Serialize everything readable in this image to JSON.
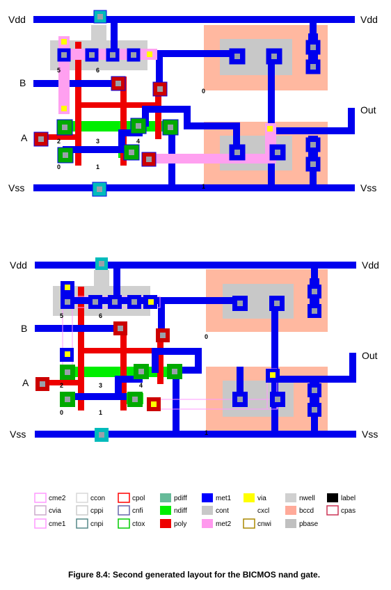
{
  "layouts": [
    {
      "name": "layout-1",
      "labels": {
        "vdd_left": "Vdd",
        "vdd_right": "Vdd",
        "b": "B",
        "a": "A",
        "vss_left": "Vss",
        "vss_right": "Vss",
        "out": "Out"
      },
      "node_labels": [
        "5",
        "6",
        "2",
        "3",
        "4",
        "0",
        "1",
        "0",
        "1"
      ]
    },
    {
      "name": "layout-2",
      "labels": {
        "vdd_left": "Vdd",
        "vdd_right": "Vdd",
        "b": "B",
        "a": "A",
        "vss_left": "Vss",
        "vss_right": "Vss",
        "out": "Out"
      },
      "node_labels": [
        "5",
        "6",
        "2",
        "3",
        "4",
        "0",
        "1",
        "0",
        "1"
      ]
    }
  ],
  "legend": [
    {
      "name": "cme2",
      "color": "#ff99ff",
      "style": "outline"
    },
    {
      "name": "ccon",
      "color": "#d8d8d8",
      "style": "outline"
    },
    {
      "name": "cpol",
      "color": "#ff0000",
      "style": "outline"
    },
    {
      "name": "pdiff",
      "color": "#66bb99",
      "style": "fill"
    },
    {
      "name": "met1",
      "color": "#0000ff",
      "style": "fill"
    },
    {
      "name": "via",
      "color": "#ffff00",
      "style": "fill"
    },
    {
      "name": "nwell",
      "color": "#d0d0d0",
      "style": "fill"
    },
    {
      "name": "label",
      "color": "#000000",
      "style": "fill"
    },
    {
      "name": "cvia",
      "color": "#ccaacc",
      "style": "outline"
    },
    {
      "name": "cppi",
      "color": "#cccccc",
      "style": "outline"
    },
    {
      "name": "cnfi",
      "color": "#6666aa",
      "style": "outline"
    },
    {
      "name": "ndiff",
      "color": "#00ee00",
      "style": "fill"
    },
    {
      "name": "cont",
      "color": "#c8c8c8",
      "style": "fill"
    },
    {
      "name": "cxcl",
      "color": "#ffffff",
      "style": "outline"
    },
    {
      "name": "bccd",
      "color": "#ffaa99",
      "style": "fill"
    },
    {
      "name": "cpas",
      "color": "#cc3355",
      "style": "outline"
    },
    {
      "name": "cme1",
      "color": "#ff99ff",
      "style": "outline"
    },
    {
      "name": "cnpi",
      "color": "#558888",
      "style": "outline"
    },
    {
      "name": "ctox",
      "color": "#00cc00",
      "style": "outline"
    },
    {
      "name": "poly",
      "color": "#ee0000",
      "style": "fill"
    },
    {
      "name": "met2",
      "color": "#ff99ee",
      "style": "fill"
    },
    {
      "name": "cnwi",
      "color": "#aa8800",
      "style": "outline"
    },
    {
      "name": "pbase",
      "color": "#c0c0c0",
      "style": "fill"
    }
  ],
  "caption": "Figure 8.4:  Second generated layout for the BICMOS nand gate.",
  "colors": {
    "met1": "#0000ee",
    "met2": "#ffa0f0",
    "poly": "#ee0000",
    "ndiff": "#00ee00",
    "pdiff": "#55bb99",
    "nwell": "#d0d0d0",
    "bccd": "#ffb8a0",
    "cont": "#c0c0c0",
    "via": "#ffff00"
  }
}
